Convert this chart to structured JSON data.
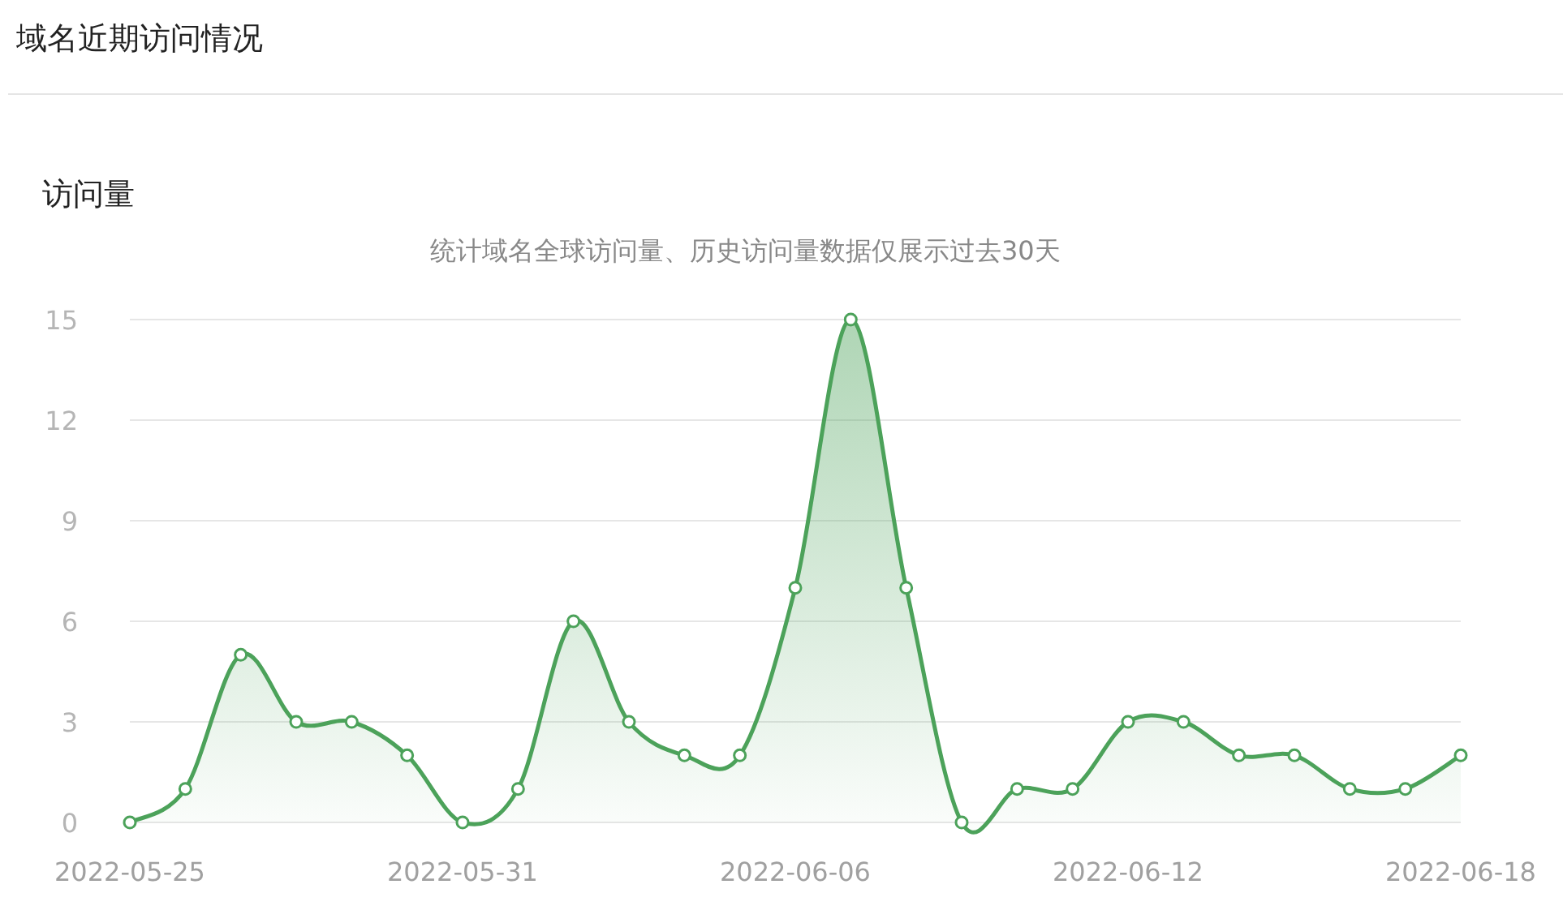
{
  "chart_data": {
    "type": "area",
    "title": "访问量",
    "subtitle": "统计域名全球访问量、历史访问量数据仅展示过去30天",
    "annotations": [
      "域名近期访问情况"
    ],
    "x": [
      "2022-05-25",
      "2022-05-26",
      "2022-05-27",
      "2022-05-28",
      "2022-05-29",
      "2022-05-30",
      "2022-05-31",
      "2022-06-01",
      "2022-06-02",
      "2022-06-03",
      "2022-06-04",
      "2022-06-05",
      "2022-06-06",
      "2022-06-07",
      "2022-06-08",
      "2022-06-09",
      "2022-06-10",
      "2022-06-11",
      "2022-06-12",
      "2022-06-13",
      "2022-06-14",
      "2022-06-15",
      "2022-06-16",
      "2022-06-17",
      "2022-06-18"
    ],
    "series": [
      {
        "color": "#4ca25a",
        "values": [
          0,
          1,
          5,
          3,
          3,
          2,
          0,
          1,
          6,
          3,
          2,
          2,
          7,
          15,
          7,
          0,
          1,
          1,
          3,
          3,
          2,
          2,
          1,
          1,
          2
        ]
      }
    ],
    "xlim": [
      "2022-05-25",
      "2022-06-18"
    ],
    "xticks": [
      "2022-05-25",
      "2022-05-31",
      "2022-06-06",
      "2022-06-12",
      "2022-06-18"
    ],
    "ylim": [
      0,
      15
    ],
    "yticks": [
      0,
      3,
      6,
      9,
      12,
      15
    ],
    "grid": "y",
    "marker": "circle"
  }
}
